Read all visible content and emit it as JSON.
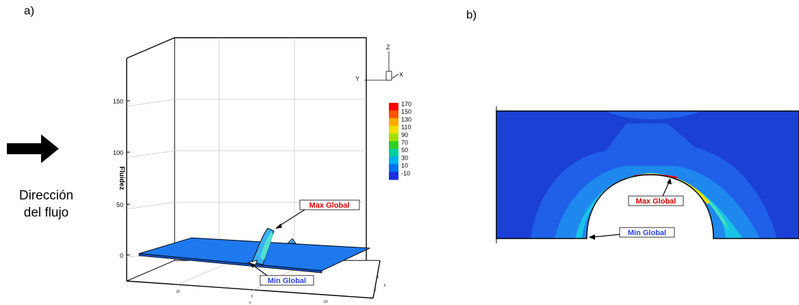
{
  "figure": {
    "panel_a": {
      "letter": "a)"
    },
    "panel_b": {
      "letter": "b)"
    },
    "flow": {
      "line1": "Dirección",
      "line2": "del flujo"
    },
    "plot3d": {
      "z_axis_label": "Fluidez",
      "y_axis_label": "Y",
      "x_axis_label": "X",
      "z_ticks": [
        "0",
        "50",
        "100",
        "150"
      ],
      "y_ticks": [
        "20",
        "0",
        "-20"
      ],
      "x_ticks": [
        "0",
        "5"
      ],
      "triad": {
        "z": "Z",
        "y": "Y",
        "x": "X"
      },
      "colorbar": {
        "labels": [
          "170",
          "150",
          "130",
          "110",
          "90",
          "70",
          "50",
          "30",
          "10",
          "-10"
        ],
        "colors": [
          "#ff0000",
          "#ff5500",
          "#ffaa00",
          "#f0e000",
          "#a0e000",
          "#30d020",
          "#00d0a0",
          "#00b0f0",
          "#0070f0",
          "#1a30e0"
        ]
      },
      "annotations": {
        "max": "Max Global",
        "min": "Min Global"
      }
    },
    "contour2d": {
      "annotations": {
        "max": "Max Global",
        "min": "Min Global"
      },
      "colors": {
        "background": "#1a40d6",
        "level2": "#2060e8",
        "level3": "#1e88ee",
        "level4": "#19c3e6",
        "level5": "#40e0c0",
        "level6": "#f0e000",
        "level7": "#ff0000"
      }
    }
  }
}
